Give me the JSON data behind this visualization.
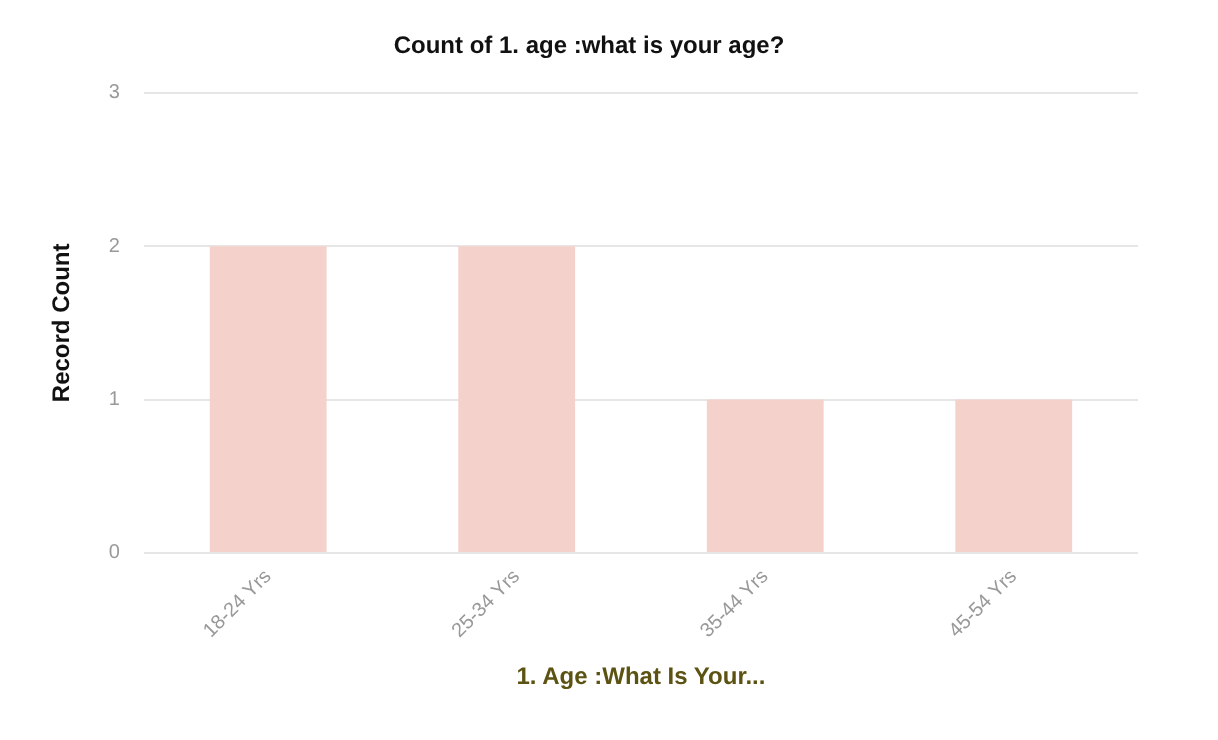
{
  "chart_data": {
    "type": "bar",
    "title": "Count of 1. age :what is your age?",
    "xlabel": "1. Age :What Is Your...",
    "ylabel": "Record Count",
    "categories": [
      "18-24 Yrs",
      "25-34 Yrs",
      "35-44 Yrs",
      "45-54 Yrs"
    ],
    "values": [
      2,
      2,
      1,
      1
    ],
    "color": "#f4d1cb",
    "ylim": [
      0,
      3
    ],
    "yticks": [
      0,
      1,
      2,
      3
    ],
    "grid": "y",
    "legend": false
  }
}
